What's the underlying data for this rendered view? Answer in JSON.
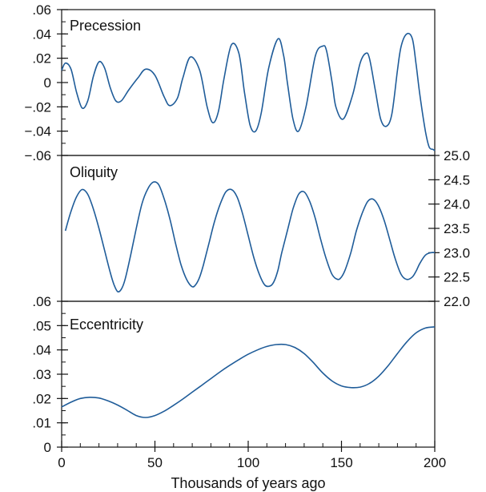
{
  "chart_data": [
    {
      "type": "line",
      "title": "Precession",
      "color": "#1f5c99",
      "ylim": [
        -0.06,
        0.06
      ],
      "y_ticks": [
        {
          "value": 0.06,
          "label": ".06"
        },
        {
          "value": 0.04,
          "label": ".04"
        },
        {
          "value": 0.02,
          "label": ".02"
        },
        {
          "value": 0,
          "label": "0"
        },
        {
          "value": -0.02,
          "label": "−.02"
        },
        {
          "value": -0.04,
          "label": "−.04"
        },
        {
          "value": -0.06,
          "label": "−.06"
        }
      ],
      "y_minor_step": 0.01,
      "series": [
        {
          "x": [
            0,
            2,
            5,
            8,
            11,
            14,
            17,
            20,
            23,
            26,
            29,
            32,
            36,
            41,
            45,
            50,
            55,
            58,
            62,
            65,
            69,
            74,
            78,
            81,
            84,
            87,
            91,
            95,
            98,
            101,
            104,
            107,
            111,
            116,
            119,
            121,
            124,
            127,
            131,
            136,
            140,
            142,
            145,
            147,
            151,
            156,
            160,
            163,
            165,
            168,
            171,
            174,
            177,
            180,
            182,
            185,
            188,
            190,
            192,
            195,
            197,
            199,
            200
          ],
          "y": [
            0.01,
            0.016,
            0.011,
            -0.008,
            -0.021,
            -0.015,
            0.005,
            0.017,
            0.012,
            -0.004,
            -0.015,
            -0.015,
            -0.006,
            0.004,
            0.011,
            0.006,
            -0.012,
            -0.019,
            -0.013,
            0.004,
            0.021,
            0.01,
            -0.02,
            -0.033,
            -0.024,
            0.003,
            0.031,
            0.024,
            -0.008,
            -0.035,
            -0.04,
            -0.025,
            0.012,
            0.036,
            0.022,
            0.0,
            -0.03,
            -0.04,
            -0.02,
            0.022,
            0.03,
            0.026,
            0.0,
            -0.02,
            -0.03,
            -0.01,
            0.016,
            0.024,
            0.02,
            -0.005,
            -0.03,
            -0.036,
            -0.026,
            0.01,
            0.03,
            0.04,
            0.036,
            0.015,
            -0.01,
            -0.04,
            -0.053,
            -0.055,
            -0.056
          ]
        }
      ]
    },
    {
      "type": "line",
      "title": "Oliquity",
      "color": "#1f5c99",
      "ylim": [
        22.0,
        25.0
      ],
      "y_ticks": [
        {
          "value": 25.0,
          "label": "25.0"
        },
        {
          "value": 24.5,
          "label": "24.5"
        },
        {
          "value": 24.0,
          "label": "24.0"
        },
        {
          "value": 23.5,
          "label": "23.5"
        },
        {
          "value": 23.0,
          "label": "23.0"
        },
        {
          "value": 22.5,
          "label": "22.5"
        },
        {
          "value": 22.0,
          "label": "22.0"
        }
      ],
      "series": [
        {
          "x": [
            2,
            5,
            8,
            11,
            14,
            17,
            20,
            23,
            26,
            28,
            30,
            32,
            34,
            37,
            40,
            43,
            46,
            49,
            52,
            55,
            58,
            61,
            64,
            67,
            70,
            72,
            74,
            76,
            79,
            82,
            85,
            88,
            91,
            94,
            97,
            100,
            103,
            106,
            109,
            112,
            114,
            116,
            118,
            121,
            124,
            127,
            130,
            133,
            136,
            139,
            142,
            145,
            148,
            150,
            152,
            155,
            158,
            161,
            164,
            167,
            170,
            173,
            176,
            179,
            182,
            185,
            188,
            190,
            192,
            195,
            198,
            200
          ],
          "y": [
            23.45,
            23.85,
            24.15,
            24.3,
            24.2,
            23.9,
            23.5,
            23.05,
            22.6,
            22.35,
            22.2,
            22.25,
            22.45,
            22.95,
            23.5,
            24.0,
            24.3,
            24.45,
            24.4,
            24.1,
            23.7,
            23.2,
            22.75,
            22.45,
            22.3,
            22.35,
            22.5,
            22.75,
            23.2,
            23.65,
            24.0,
            24.25,
            24.3,
            24.15,
            23.8,
            23.35,
            22.9,
            22.55,
            22.33,
            22.32,
            22.42,
            22.65,
            23.0,
            23.45,
            23.9,
            24.2,
            24.25,
            24.05,
            23.7,
            23.25,
            22.85,
            22.55,
            22.45,
            22.5,
            22.65,
            23.0,
            23.45,
            23.8,
            24.05,
            24.1,
            23.95,
            23.65,
            23.25,
            22.85,
            22.55,
            22.45,
            22.5,
            22.62,
            22.78,
            22.95,
            23.0,
            23.0
          ]
        }
      ]
    },
    {
      "type": "line",
      "title": "Eccentricity",
      "color": "#1f5c99",
      "xlim": [
        0,
        200
      ],
      "ylim": [
        0,
        0.06
      ],
      "xlabel": "Thousands of years ago",
      "x_ticks": [
        {
          "value": 0,
          "label": "0"
        },
        {
          "value": 50,
          "label": "50"
        },
        {
          "value": 100,
          "label": "100"
        },
        {
          "value": 150,
          "label": "150"
        },
        {
          "value": 200,
          "label": "200"
        }
      ],
      "x_minor_step": 10,
      "y_ticks": [
        {
          "value": 0.06,
          "label": ".06"
        },
        {
          "value": 0.05,
          "label": ".05"
        },
        {
          "value": 0.04,
          "label": ".04"
        },
        {
          "value": 0.03,
          "label": ".03"
        },
        {
          "value": 0.02,
          "label": ".02"
        },
        {
          "value": 0.01,
          "label": ".01"
        },
        {
          "value": 0,
          "label": "0"
        }
      ],
      "y_minor_step": 0.005,
      "series": [
        {
          "x": [
            0,
            5,
            10,
            15,
            20,
            25,
            30,
            35,
            40,
            45,
            50,
            55,
            60,
            65,
            70,
            75,
            80,
            85,
            90,
            95,
            100,
            105,
            110,
            115,
            120,
            125,
            130,
            135,
            140,
            145,
            150,
            155,
            160,
            165,
            170,
            175,
            180,
            185,
            190,
            195,
            200
          ],
          "y": [
            0.0165,
            0.0185,
            0.02,
            0.0205,
            0.0202,
            0.019,
            0.0173,
            0.0152,
            0.013,
            0.0122,
            0.013,
            0.0148,
            0.0172,
            0.0198,
            0.0226,
            0.0254,
            0.0282,
            0.031,
            0.0336,
            0.036,
            0.0382,
            0.04,
            0.0414,
            0.0422,
            0.0422,
            0.041,
            0.0385,
            0.0347,
            0.0305,
            0.0272,
            0.0252,
            0.0245,
            0.0247,
            0.0262,
            0.0292,
            0.0335,
            0.0385,
            0.0433,
            0.047,
            0.049,
            0.0495
          ]
        }
      ]
    }
  ]
}
